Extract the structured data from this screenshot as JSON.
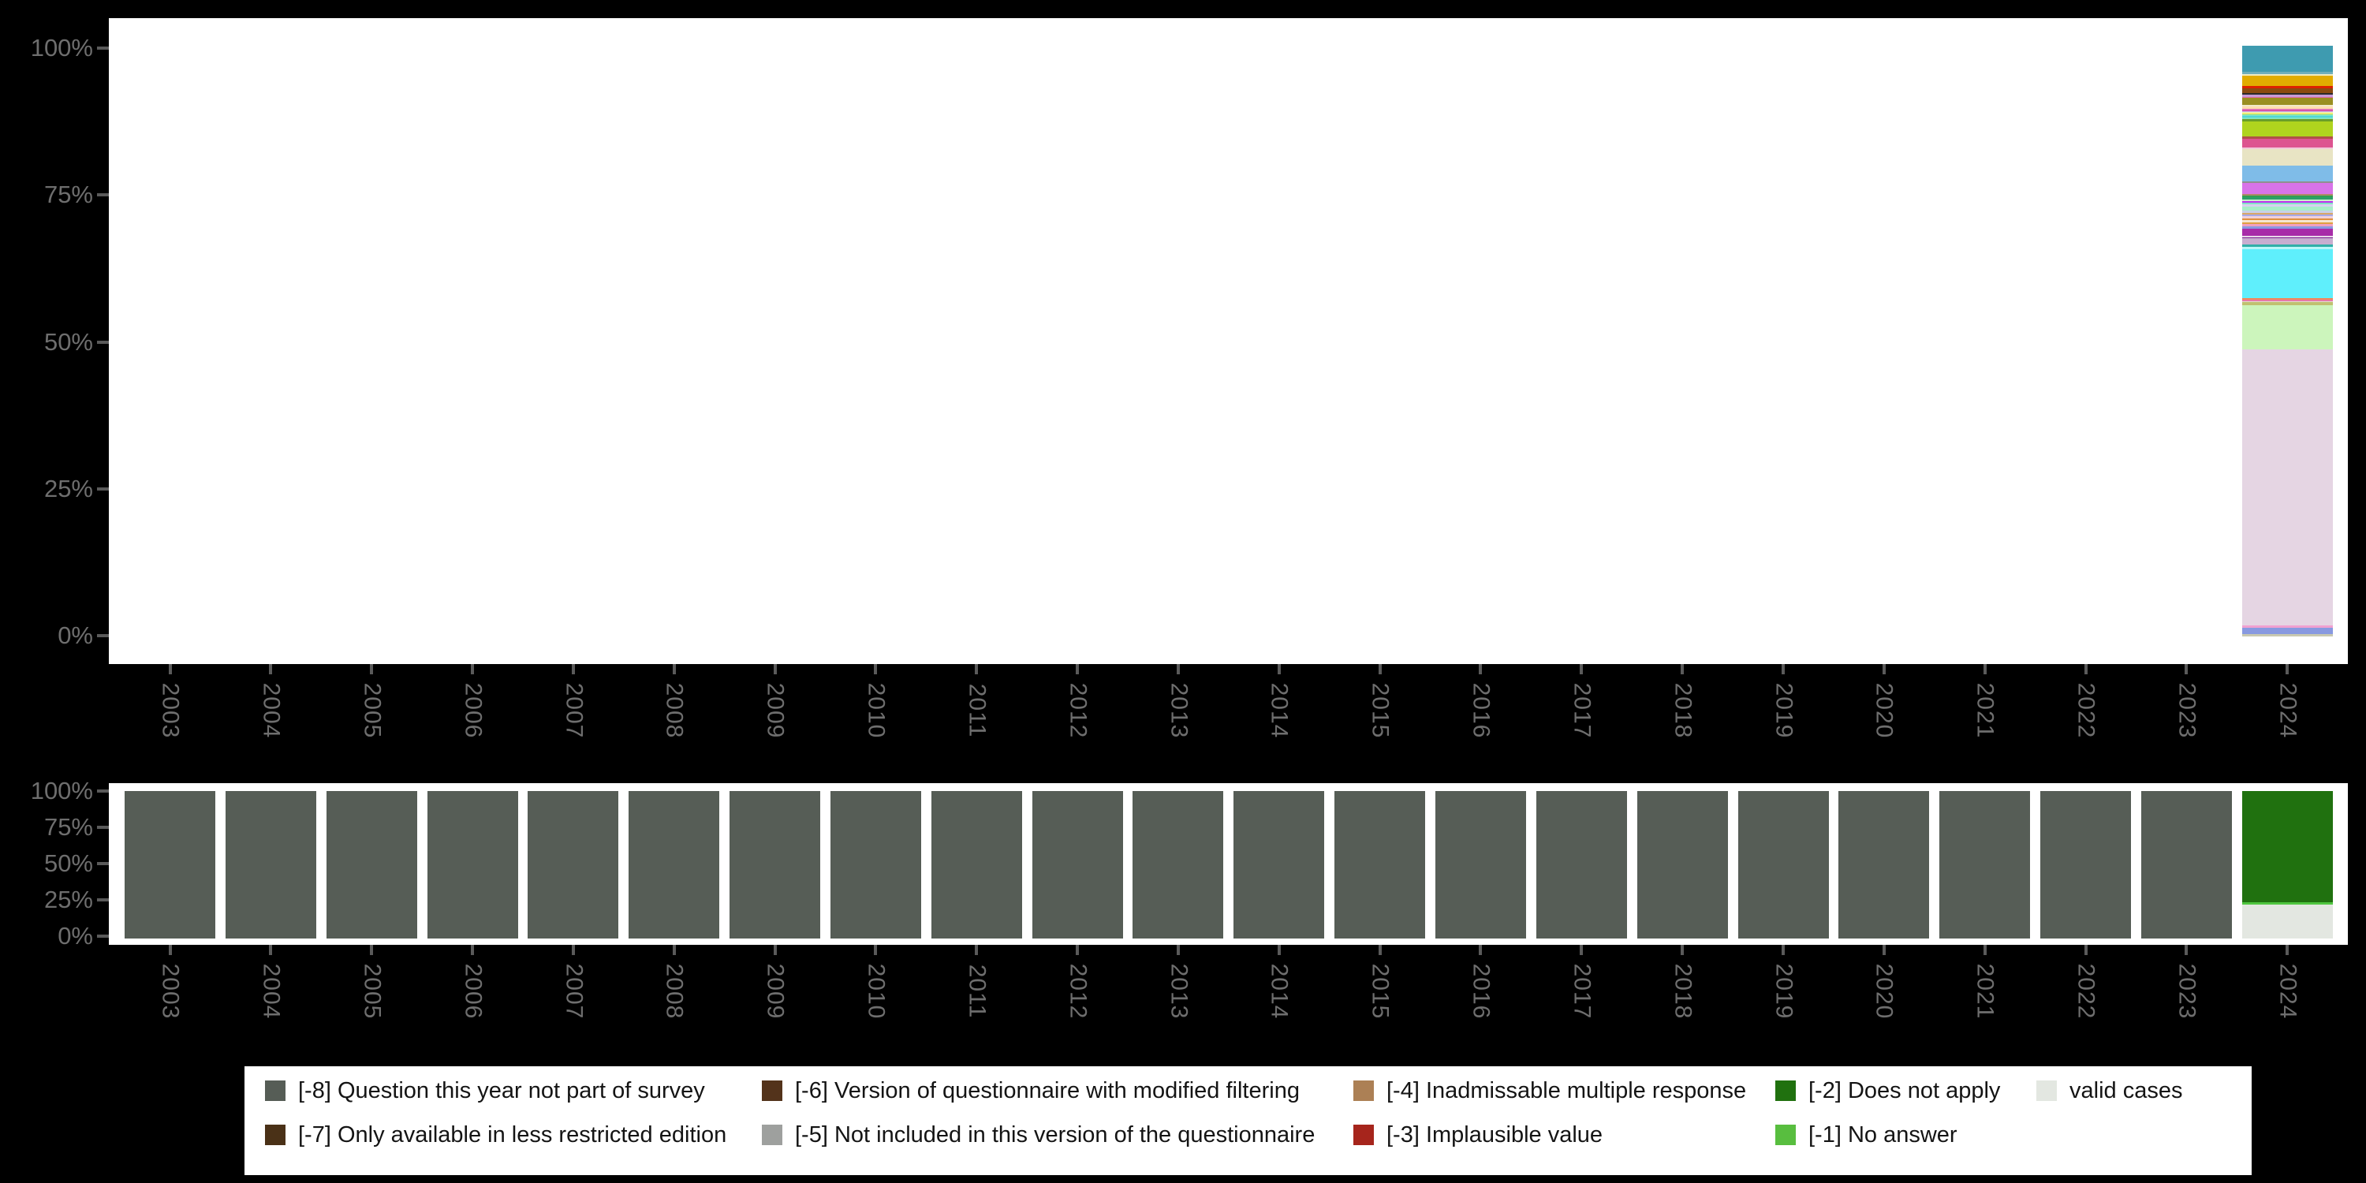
{
  "figure": {
    "background": "#000000",
    "panel_background": "#FFFFFF",
    "axis_text_color": "#6e6e6e",
    "tick_color": "#5a5a5a"
  },
  "chart_data": [
    {
      "type": "bar",
      "stacked": true,
      "title": "",
      "xlabel": "",
      "ylabel": "",
      "categories": [
        "2003",
        "2004",
        "2005",
        "2006",
        "2007",
        "2008",
        "2009",
        "2010",
        "2011",
        "2012",
        "2013",
        "2014",
        "2015",
        "2016",
        "2017",
        "2018",
        "2019",
        "2020",
        "2021",
        "2022",
        "2023",
        "2024"
      ],
      "yticks": [
        "100%",
        "75%",
        "50%",
        "25%",
        "0%"
      ],
      "ylim": [
        0,
        100
      ],
      "grid": false,
      "note": "Only 2024 has data; segments listed top-to-bottom as [color, percent]",
      "segments_2024": [
        [
          "#3E9BB0",
          4.4
        ],
        [
          "#6FAEBB",
          0.4
        ],
        [
          "#EFEBC3",
          0.2
        ],
        [
          "#E1AC00",
          1.8
        ],
        [
          "#DD2100",
          0.36
        ],
        [
          "#8B4A10",
          0.84
        ],
        [
          "#2B2B2B",
          0.27
        ],
        [
          "#C89AD8",
          0.35
        ],
        [
          "#E06AA0",
          0.23
        ],
        [
          "#9A8F22",
          1.1
        ],
        [
          "#F2EAC8",
          0.33
        ],
        [
          "#FFDFB0",
          0.4
        ],
        [
          "#E070B8",
          0.2
        ],
        [
          "#D040A0",
          0.17
        ],
        [
          "#C8B8E8",
          0.17
        ],
        [
          "#F0F0A8",
          0.2
        ],
        [
          "#E8E830",
          0.17
        ],
        [
          "#7FE3C3",
          0.33
        ],
        [
          "#50D8D8",
          0.27
        ],
        [
          "#7FE3C3",
          0.27
        ],
        [
          "#6A9E28",
          0.4
        ],
        [
          "#AFD41E",
          2.54
        ],
        [
          "#B05048",
          0.4
        ],
        [
          "#DD5490",
          1.34
        ],
        [
          "#F2C8D8",
          0.27
        ],
        [
          "#E8E4C4",
          2.81
        ],
        [
          "#7FBCE8",
          2.67
        ],
        [
          "#909090",
          0.27
        ],
        [
          "#D873E8",
          1.87
        ],
        [
          "#B08868",
          0.27
        ],
        [
          "#30A050",
          0.27
        ],
        [
          "#2E9E68",
          0.4
        ],
        [
          "#C8F0C8",
          0.27
        ],
        [
          "#C030F0",
          0.27
        ],
        [
          "#7FE3C3",
          0.27
        ],
        [
          "#D8D0F0",
          0.4
        ],
        [
          "#A8EEC8",
          0.67
        ],
        [
          "#C8D0E8",
          0.4
        ],
        [
          "#D8A868",
          0.27
        ],
        [
          "#A8A8E8",
          0.27
        ],
        [
          "#F0D0D8",
          0.4
        ],
        [
          "#E09040",
          0.27
        ],
        [
          "#F5E6D0",
          0.4
        ],
        [
          "#E0A040",
          0.27
        ],
        [
          "#F0A0C0",
          0.4
        ],
        [
          "#8898E0",
          0.4
        ],
        [
          "#A82CA8",
          1.2
        ],
        [
          "#E8D8E8",
          0.27
        ],
        [
          "#7A2090",
          0.2
        ],
        [
          "#C8AED0",
          1.07
        ],
        [
          "#30B0A8",
          0.4
        ],
        [
          "#B8F8F8",
          0.4
        ],
        [
          "#5FEFFC",
          8.16
        ],
        [
          "#F08858",
          0.27
        ],
        [
          "#E878A8",
          0.27
        ],
        [
          "#E0E0D0",
          0.13
        ],
        [
          "#C0C070",
          0.53
        ],
        [
          "#CCF5BC",
          7.5
        ],
        [
          "#E5D5E3",
          46.6
        ],
        [
          "#F0A0D0",
          0.44
        ],
        [
          "#8899E0",
          1.1
        ],
        [
          "#C8C8B0",
          0.3
        ]
      ]
    },
    {
      "type": "bar",
      "stacked": true,
      "title": "",
      "xlabel": "",
      "ylabel": "",
      "categories": [
        "2003",
        "2004",
        "2005",
        "2006",
        "2007",
        "2008",
        "2009",
        "2010",
        "2011",
        "2012",
        "2013",
        "2014",
        "2015",
        "2016",
        "2017",
        "2018",
        "2019",
        "2020",
        "2021",
        "2022",
        "2023",
        "2024"
      ],
      "yticks": [
        "100%",
        "75%",
        "50%",
        "25%",
        "0%"
      ],
      "ylim": [
        0,
        100
      ],
      "grid": false,
      "series": [
        {
          "name": "[-8] Question this year not part of survey",
          "color": "#565D56",
          "values": [
            100,
            100,
            100,
            100,
            100,
            100,
            100,
            100,
            100,
            100,
            100,
            100,
            100,
            100,
            100,
            100,
            100,
            100,
            100,
            100,
            100,
            0
          ]
        },
        {
          "name": "[-2] Does not apply",
          "color": "#20710F",
          "values": [
            0,
            0,
            0,
            0,
            0,
            0,
            0,
            0,
            0,
            0,
            0,
            0,
            0,
            0,
            0,
            0,
            0,
            0,
            0,
            0,
            0,
            75.4
          ]
        },
        {
          "name": "[-1] No answer",
          "color": "#4FC63F",
          "values": [
            0,
            0,
            0,
            0,
            0,
            0,
            0,
            0,
            0,
            0,
            0,
            0,
            0,
            0,
            0,
            0,
            0,
            0,
            0,
            0,
            0,
            1.4
          ]
        },
        {
          "name": "valid cases",
          "color": "#E3E7E1",
          "values": [
            0,
            0,
            0,
            0,
            0,
            0,
            0,
            0,
            0,
            0,
            0,
            0,
            0,
            0,
            0,
            0,
            0,
            0,
            0,
            0,
            0,
            23.2
          ]
        }
      ]
    }
  ],
  "legend": {
    "position": "bottom",
    "items": [
      {
        "label": "[-8] Question this year not part of survey",
        "color": "#565D56"
      },
      {
        "label": "[-7] Only available in less restricted edition",
        "color": "#4A3117"
      },
      {
        "label": "[-6] Version of questionnaire with modified filtering",
        "color": "#53331B"
      },
      {
        "label": "[-5] Not included in this version of the questionnaire",
        "color": "#9EA09E"
      },
      {
        "label": "[-4] Inadmissable multiple response",
        "color": "#AC8055"
      },
      {
        "label": "[-3] Implausible value",
        "color": "#A6251C"
      },
      {
        "label": "[-2] Does not apply",
        "color": "#20710F"
      },
      {
        "label": "[-1] No answer",
        "color": "#58BE3F"
      },
      {
        "label": "valid cases",
        "color": "#E3E7E1"
      }
    ]
  }
}
